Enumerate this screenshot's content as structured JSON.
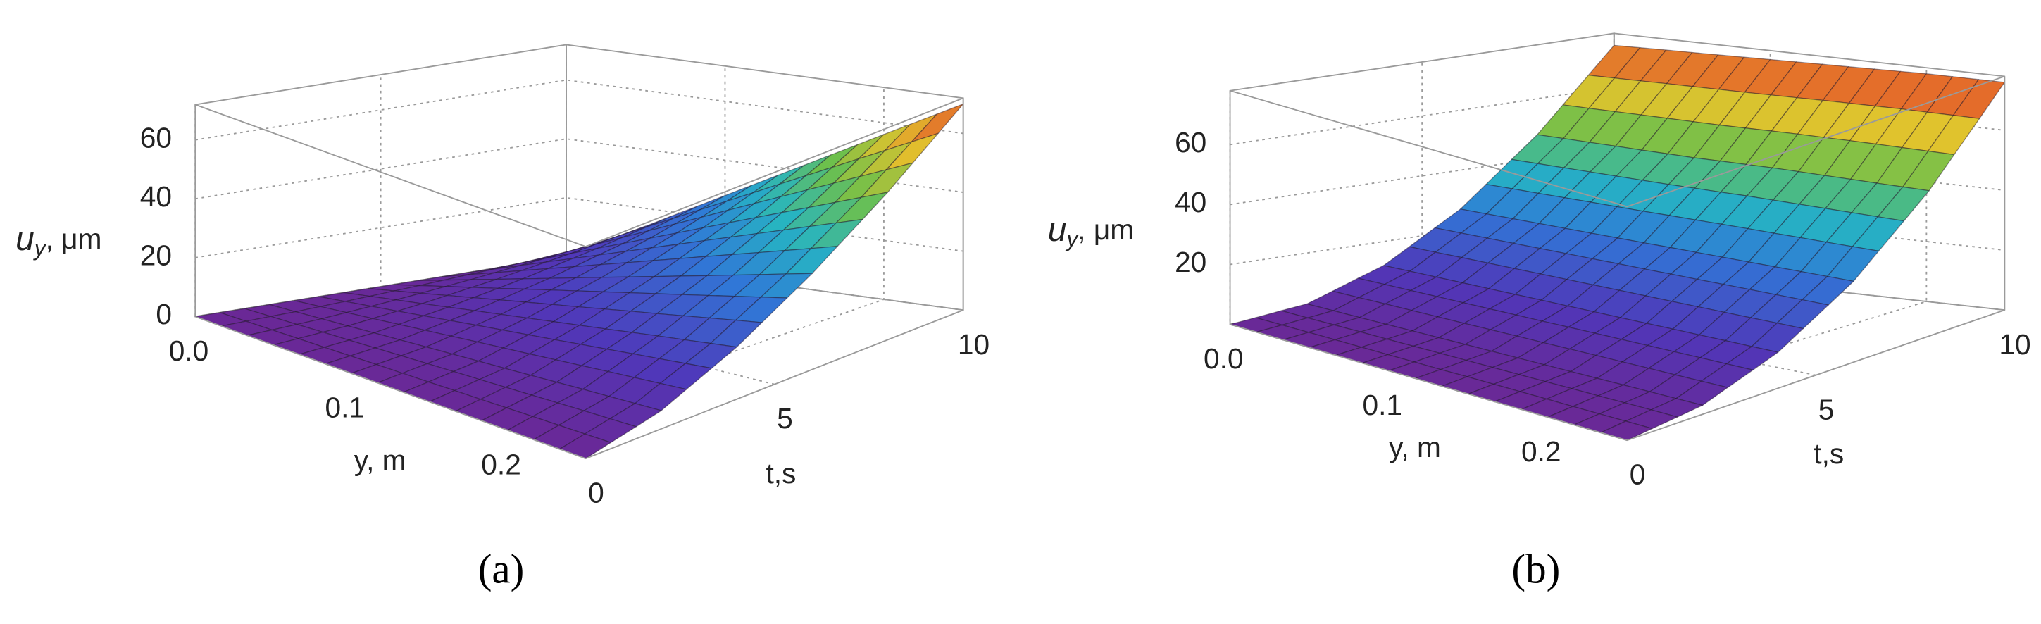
{
  "chart_data": [
    {
      "type": "surface",
      "caption": "(a)",
      "x_label": "y, m",
      "y_label": "t,s",
      "z_label": "u",
      "z_label_sub": "y",
      "z_label_unit": ", μm",
      "x": [
        0,
        0.05,
        0.1,
        0.15,
        0.2,
        0.25
      ],
      "y": [
        0,
        2,
        4,
        6,
        8,
        10
      ],
      "values": [
        [
          0,
          0,
          0,
          0,
          0,
          0
        ],
        [
          0,
          1.2,
          2.5,
          3.7,
          5.0,
          6.2
        ],
        [
          0,
          3.5,
          7.1,
          10.6,
          14.2,
          17.7
        ],
        [
          0,
          6.5,
          13.0,
          19.5,
          26.0,
          32.6
        ],
        [
          0,
          10.0,
          20.0,
          30.1,
          40.1,
          50.1
        ],
        [
          0,
          14,
          28,
          42,
          56,
          70
        ]
      ],
      "xlim": [
        0,
        0.25
      ],
      "xticks": [
        {
          "value": 0,
          "label": "0.0"
        },
        0.1,
        0.2
      ],
      "ylim": [
        0,
        10
      ],
      "yticks": [
        0,
        5,
        10
      ],
      "zlim": [
        0,
        72
      ],
      "zticks": [
        0,
        20,
        40,
        60
      ],
      "grid": true
    },
    {
      "type": "surface",
      "caption": "(b)",
      "x_label": "y, m",
      "y_label": "t,s",
      "z_label": "u",
      "z_label_sub": "y",
      "z_label_unit": ", μm",
      "x": [
        0,
        0.05,
        0.1,
        0.15,
        0.2,
        0.25
      ],
      "y": [
        0,
        2,
        4,
        6,
        8,
        10
      ],
      "values": [
        [
          0,
          0,
          0,
          0,
          0,
          0
        ],
        [
          3,
          3,
          3,
          3,
          3,
          3
        ],
        [
          12,
          12,
          12,
          12,
          12,
          12
        ],
        [
          27,
          27,
          27,
          27,
          27,
          27
        ],
        [
          48,
          48,
          48,
          48.5,
          48.5,
          48.5
        ],
        [
          74,
          74.5,
          75,
          75.5,
          76,
          76
        ]
      ],
      "xlim": [
        0,
        0.25
      ],
      "xticks": [
        {
          "value": 0,
          "label": "0.0"
        },
        0.1,
        0.2
      ],
      "ylim": [
        0,
        10
      ],
      "yticks": [
        0,
        5,
        10
      ],
      "zlim": [
        0,
        78
      ],
      "zticks": [
        20,
        40,
        60
      ],
      "grid": true
    }
  ]
}
